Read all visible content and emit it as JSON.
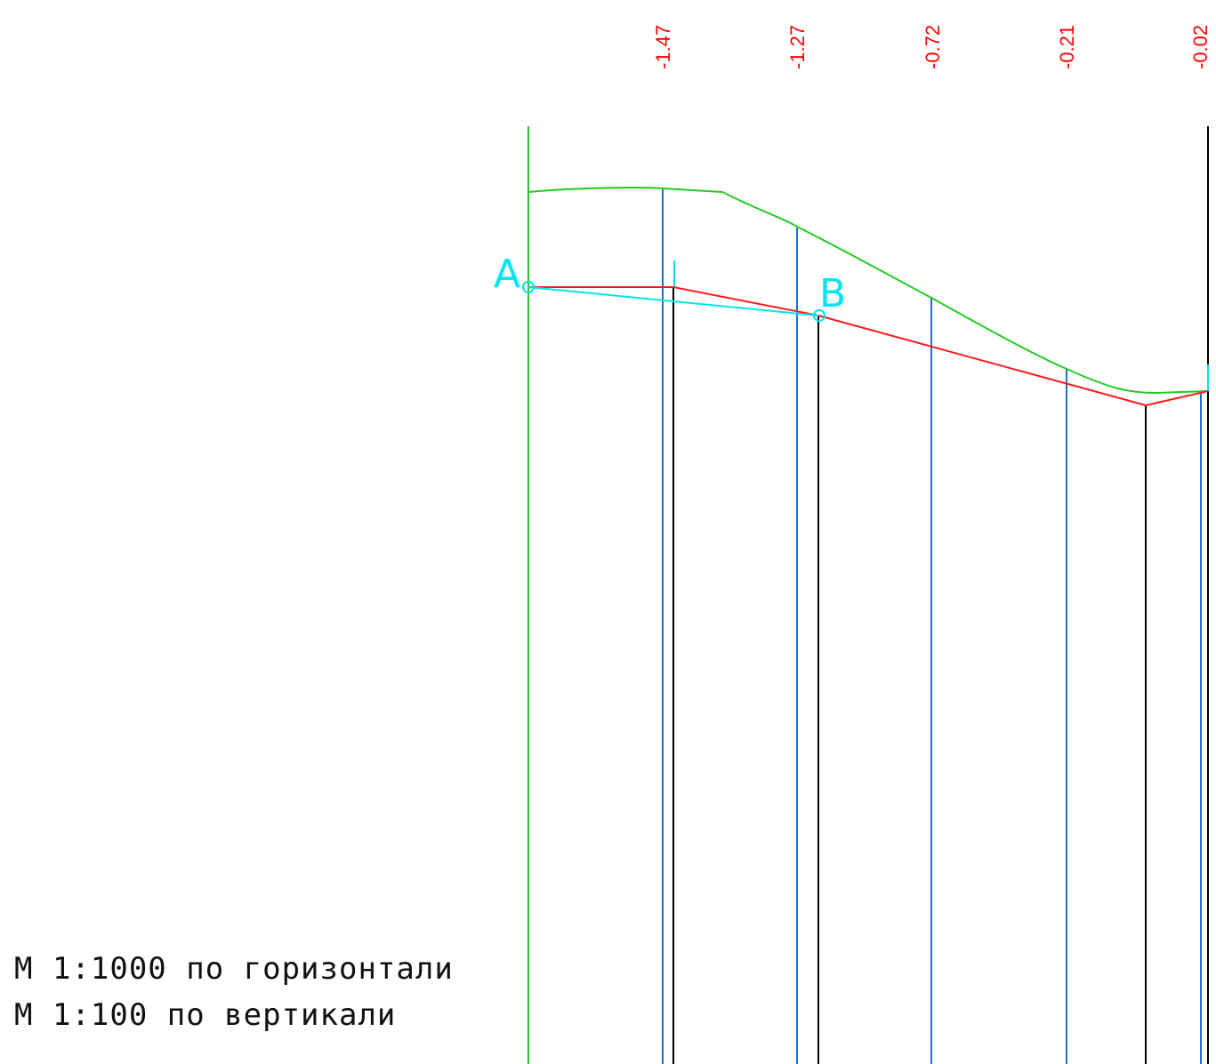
{
  "colors": {
    "ground_line": "#22cc22",
    "design_line": "#ff1a1a",
    "segment_ab": "#00e5ee",
    "station_line": "#1a6fd6",
    "vertical_line": "#000000",
    "elevation_label": "#ff0000",
    "point_label": "#00e5ee",
    "background": "#ffffff"
  },
  "elevation_labels": [
    "-1.47",
    "-1.27",
    "-0.72",
    "-0.21",
    "-0.02"
  ],
  "points": {
    "a": "A",
    "b": "B"
  },
  "scale": {
    "horizontal": "М 1:1000 по горизонтали",
    "vertical": "М 1:100 по вертикали"
  }
}
